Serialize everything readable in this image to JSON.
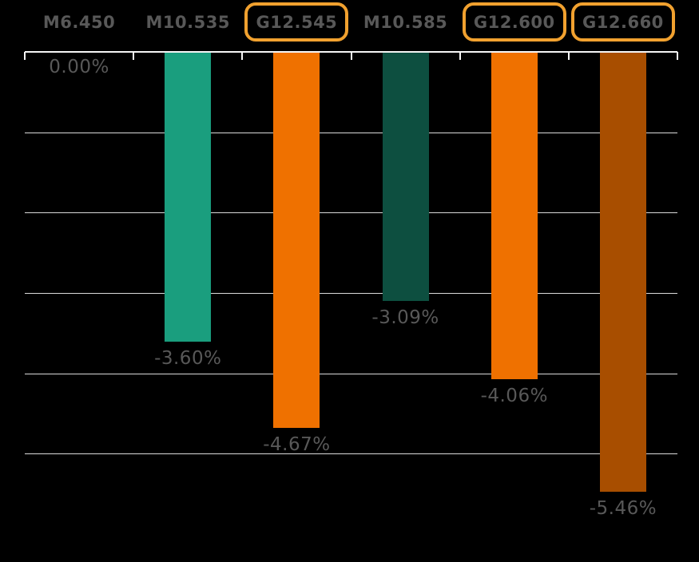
{
  "chart_data": {
    "type": "bar",
    "title": "",
    "xlabel": "",
    "ylabel": "",
    "categories": [
      "M6.450",
      "M10.535",
      "G12.545",
      "M10.585",
      "G12.600",
      "G12.660"
    ],
    "values": [
      0.0,
      -3.6,
      -4.67,
      -3.09,
      -4.06,
      -5.46
    ],
    "data_labels": [
      "0.00%",
      "-3.60%",
      "-4.67%",
      "-3.09%",
      "-4.06%",
      "-5.46%"
    ],
    "bar_colors": [
      "#1A9E7E",
      "#1A9E7E",
      "#EF7100",
      "#0D4F40",
      "#EF7100",
      "#A84E00"
    ],
    "highlighted_categories": [
      "G12.545",
      "G12.600",
      "G12.660"
    ],
    "ylim": [
      -6,
      0
    ],
    "gridline_step": 1,
    "grid": true,
    "legend": "none",
    "colors": {
      "background": "#000000",
      "axis_line": "#F5F5F5",
      "gridline": "#DADADA",
      "text": "#585858",
      "highlight_box_border": "#F1A12F"
    }
  }
}
